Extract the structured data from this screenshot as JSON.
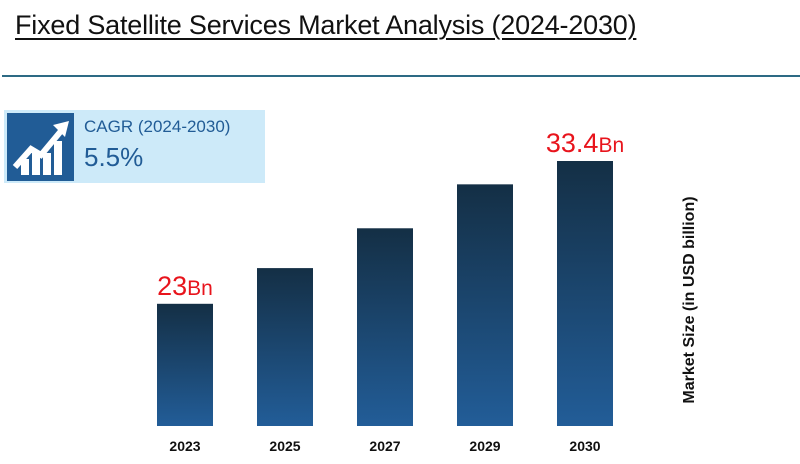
{
  "header": {
    "title": "Fixed Satellite Services Market Analysis (2024-2030)"
  },
  "cagr": {
    "icon": "growth-chart-arrow-icon",
    "label": "CAGR (2024-2030)",
    "value": "5.5%"
  },
  "colors": {
    "bar_top": "#142f45",
    "bar_bottom": "#225d98",
    "data_label": "#e8141c",
    "rule": "#2d6a84",
    "cagr_bg": "#cdeaf9",
    "cagr_accent": "#215c96"
  },
  "chart_data": {
    "type": "bar",
    "title": "Fixed Satellite Services Market Analysis (2024-2030)",
    "xlabel": "",
    "ylabel": "Market Size (in USD billion)",
    "categories": [
      "2023",
      "2025",
      "2027",
      "2029",
      "2030"
    ],
    "values": [
      23,
      25.6,
      28.5,
      31.7,
      33.4
    ],
    "data_labels": [
      {
        "index": 0,
        "number": "23",
        "unit": "Bn"
      },
      {
        "index": 4,
        "number": "33.4",
        "unit": "Bn"
      }
    ],
    "ylim": [
      14.1,
      33.4
    ],
    "grid": false,
    "legend": "none",
    "ylabel_position": "right"
  }
}
